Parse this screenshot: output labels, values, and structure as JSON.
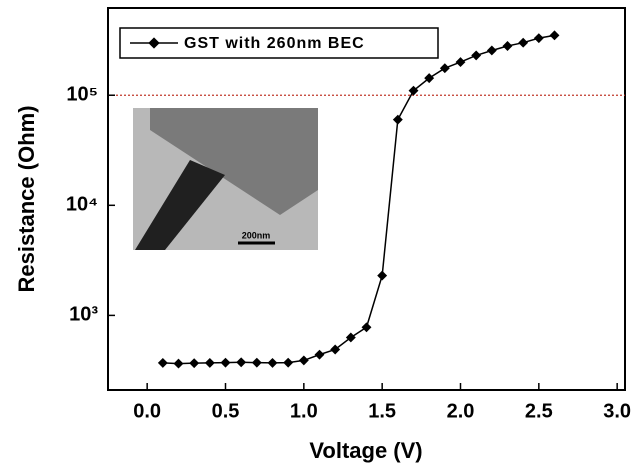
{
  "chart_data": {
    "type": "line",
    "xlabel": "Voltage (V)",
    "ylabel": "Resistance (Ohm)",
    "x": [
      0.1,
      0.2,
      0.3,
      0.4,
      0.5,
      0.6,
      0.7,
      0.8,
      0.9,
      1.0,
      1.1,
      1.2,
      1.3,
      1.4,
      1.5,
      1.6,
      1.7,
      1.8,
      1.9,
      2.0,
      2.1,
      2.2,
      2.3,
      2.4,
      2.5,
      2.6
    ],
    "series": [
      {
        "name": "GST with 260nm BEC",
        "color": "#000000",
        "values": [
          370,
          365,
          368,
          370,
          372,
          375,
          372,
          370,
          372,
          390,
          440,
          490,
          630,
          780,
          2300,
          60000,
          110000,
          143000,
          176000,
          200000,
          230000,
          255000,
          280000,
          300000,
          330000,
          350000
        ]
      }
    ],
    "xlim": [
      -0.25,
      3.05
    ],
    "xticks": [
      {
        "value": 0,
        "label": "0.0"
      },
      0.5,
      {
        "value": 1,
        "label": "1.0"
      },
      1.5,
      {
        "value": 2,
        "label": "2.0"
      },
      2.5,
      {
        "value": 3,
        "label": "3.0"
      }
    ],
    "ylim": [
      210,
      620000
    ],
    "yscale": "log",
    "yticks": [
      {
        "value": 1000,
        "label": "10³"
      },
      {
        "value": 10000,
        "label": "10⁴"
      },
      {
        "value": 100000,
        "label": "10⁵"
      }
    ],
    "reference_line": {
      "value": 100000,
      "color": "#c0392b"
    },
    "inset_label": "200nm",
    "legend": "upper left"
  }
}
